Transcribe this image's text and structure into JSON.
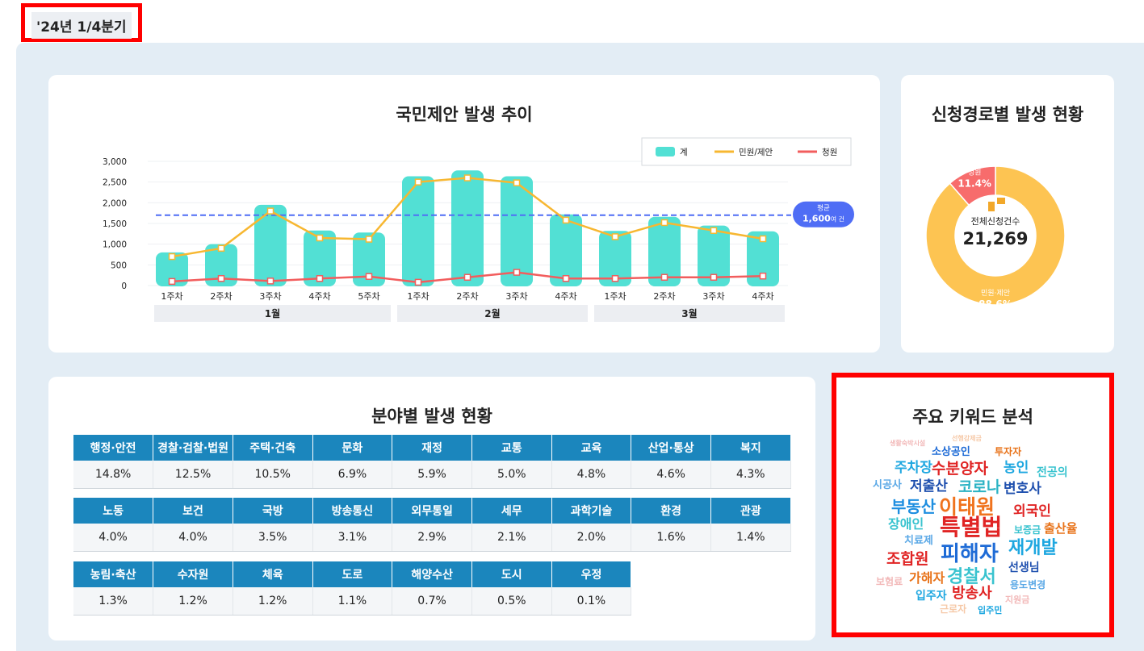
{
  "period_label": "'24년 1/4분기",
  "trend": {
    "title": "국민제안 발생 추이",
    "legend": [
      {
        "label": "계",
        "color": "#52e0d4"
      },
      {
        "label": "민원/제안",
        "color": "#f7b731"
      },
      {
        "label": "청원",
        "color": "#f25d5d"
      }
    ],
    "average": {
      "label": "평균",
      "value": "1,600",
      "unit": "여 건",
      "y": 1700,
      "color": "#4f6df5"
    }
  },
  "chart_data": {
    "type": "bar",
    "title": "국민제안 발생 추이",
    "categories": [
      "1주차",
      "2주차",
      "3주차",
      "4주차",
      "5주차",
      "1주차",
      "2주차",
      "3주차",
      "4주차",
      "1주차",
      "2주차",
      "3주차",
      "4주차"
    ],
    "groups": [
      {
        "label": "1월",
        "span": 5
      },
      {
        "label": "2월",
        "span": 4
      },
      {
        "label": "3월",
        "span": 4
      }
    ],
    "yticks": [
      "0",
      "500",
      "1,000",
      "1,500",
      "2,000",
      "2,500",
      "3,000"
    ],
    "ylim": [
      0,
      3000
    ],
    "series": [
      {
        "name": "계",
        "kind": "bar",
        "color": "#52e0d4",
        "values": [
          800,
          1000,
          1950,
          1330,
          1280,
          2640,
          2780,
          2640,
          1720,
          1320,
          1660,
          1450,
          1310
        ]
      },
      {
        "name": "민원/제안",
        "kind": "line",
        "color": "#f7b731",
        "values": [
          700,
          900,
          1800,
          1150,
          1120,
          2500,
          2600,
          2480,
          1580,
          1180,
          1520,
          1330,
          1130
        ]
      },
      {
        "name": "청원",
        "kind": "line",
        "color": "#f25d5d",
        "values": [
          100,
          170,
          110,
          170,
          220,
          80,
          200,
          320,
          170,
          170,
          200,
          200,
          230
        ]
      }
    ]
  },
  "route": {
    "title": "신청경로별 발생 현황",
    "center_label": "전체신청건수",
    "total": "21,269",
    "slices": [
      {
        "name": "민원·제안",
        "pct": "88.6%",
        "value": 88.6,
        "color": "#fdc452"
      },
      {
        "name": "청원",
        "pct": "11.4%",
        "value": 11.4,
        "color": "#f76c6c"
      }
    ]
  },
  "fields": {
    "title": "분야별 발생 현황",
    "rows": [
      {
        "headers": [
          "행정·안전",
          "경찰·검찰·법원",
          "주택·건축",
          "문화",
          "재정",
          "교통",
          "교육",
          "산업·통상",
          "복지"
        ],
        "values": [
          "14.8%",
          "12.5%",
          "10.5%",
          "6.9%",
          "5.9%",
          "5.0%",
          "4.8%",
          "4.6%",
          "4.3%"
        ]
      },
      {
        "headers": [
          "노동",
          "보건",
          "국방",
          "방송통신",
          "외무통일",
          "세무",
          "과학기술",
          "환경",
          "관광"
        ],
        "values": [
          "4.0%",
          "4.0%",
          "3.5%",
          "3.1%",
          "2.9%",
          "2.1%",
          "2.0%",
          "1.6%",
          "1.4%"
        ]
      },
      {
        "headers": [
          "농림·축산",
          "수자원",
          "체육",
          "도로",
          "해양수산",
          "도시",
          "우정"
        ],
        "values": [
          "1.3%",
          "1.2%",
          "1.2%",
          "1.1%",
          "0.7%",
          "0.5%",
          "0.1%"
        ]
      }
    ]
  },
  "keywords": {
    "title": "주요 키워드 분석",
    "words": [
      {
        "text": "생활숙박시설",
        "color": "#f2b8b8"
      },
      {
        "text": "선행강제금",
        "color": "#f6c9a8"
      },
      {
        "text": "소상공인",
        "color": "#1e6bd6"
      },
      {
        "text": "투자자",
        "color": "#e8731a"
      },
      {
        "text": "주차장",
        "color": "#1ea7e0"
      },
      {
        "text": "수분양자",
        "color": "#e02424"
      },
      {
        "text": "농인",
        "color": "#1ea7e0"
      },
      {
        "text": "전공의",
        "color": "#39c3cf"
      },
      {
        "text": "시공사",
        "color": "#5aa8e6"
      },
      {
        "text": "저출산",
        "color": "#1e4fae"
      },
      {
        "text": "코로나",
        "color": "#2bb3c4"
      },
      {
        "text": "변호사",
        "color": "#1e4fae"
      },
      {
        "text": "부동산",
        "color": "#1e8ee0"
      },
      {
        "text": "이태원",
        "color": "#f0731e"
      },
      {
        "text": "외국인",
        "color": "#e02424"
      },
      {
        "text": "장애인",
        "color": "#39c3cf"
      },
      {
        "text": "특별법",
        "color": "#e02424"
      },
      {
        "text": "보증금",
        "color": "#39c3cf"
      },
      {
        "text": "출산율",
        "color": "#e8731a"
      },
      {
        "text": "치료제",
        "color": "#5aa8e6"
      },
      {
        "text": "재개발",
        "color": "#1ea7e0"
      },
      {
        "text": "조합원",
        "color": "#e02424"
      },
      {
        "text": "피해자",
        "color": "#1e6bd6"
      },
      {
        "text": "선생님",
        "color": "#1e4fae"
      },
      {
        "text": "보험료",
        "color": "#f2b8b8"
      },
      {
        "text": "가해자",
        "color": "#e8731a"
      },
      {
        "text": "경찰서",
        "color": "#39c3cf"
      },
      {
        "text": "용도변경",
        "color": "#5aa8e6"
      },
      {
        "text": "입주자",
        "color": "#1ea7e0"
      },
      {
        "text": "방송사",
        "color": "#e02424"
      },
      {
        "text": "지원금",
        "color": "#f2b8b8"
      },
      {
        "text": "근로자",
        "color": "#f6c9a8"
      },
      {
        "text": "입주민",
        "color": "#1ea7e0"
      }
    ]
  }
}
